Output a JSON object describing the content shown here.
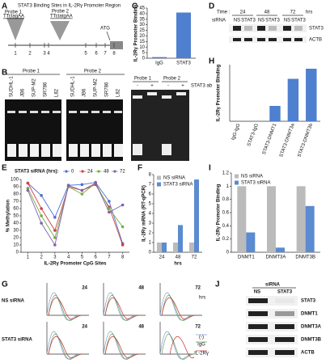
{
  "chart_data": [
    {
      "type": "bar",
      "categories": [
        "IgG",
        "STAT3"
      ],
      "values": [
        1,
        41
      ],
      "color": "#4f7fcf",
      "ylabel": "IL-2Rγ Promoter Binding",
      "ylim": [
        0,
        45
      ],
      "yticks": [
        0,
        5,
        10,
        15,
        20,
        25,
        30,
        35,
        40,
        45
      ]
    },
    {
      "type": "line",
      "legend_title": "STAT3 siRNA (hrs):",
      "x": [
        1,
        2,
        3,
        4,
        5,
        6,
        7,
        8
      ],
      "series": [
        {
          "name": "0",
          "color": "#4a6fd6",
          "values": [
            95,
            78,
            48,
            92,
            93,
            96,
            70,
            12
          ]
        },
        {
          "name": "24",
          "color": "#d04040",
          "values": [
            95,
            60,
            30,
            90,
            85,
            93,
            62,
            10
          ]
        },
        {
          "name": "48",
          "color": "#7aaa40",
          "values": [
            88,
            50,
            20,
            90,
            80,
            95,
            60,
            35
          ]
        },
        {
          "name": "72",
          "color": "#8060b0",
          "values": [
            85,
            40,
            10,
            92,
            85,
            95,
            55,
            65
          ]
        }
      ],
      "xlabel": "IL-2Rγ Promoter CpG Sites",
      "ylabel": "% Methylation",
      "xlim": [
        0.5,
        8.5
      ],
      "xticks": [
        1,
        2,
        3,
        4,
        5,
        6,
        7,
        8
      ],
      "ylim": [
        0,
        100
      ],
      "yticks": [
        0,
        10,
        20,
        30,
        40,
        50,
        60,
        70,
        80,
        90,
        100
      ]
    },
    {
      "type": "bar",
      "categories": [
        "24",
        "48",
        "72"
      ],
      "xlabel": "hrs",
      "series": [
        {
          "name": "NS siRNA",
          "color": "#bbbbbb",
          "values": [
            1,
            1,
            1
          ]
        },
        {
          "name": "STAT3 siRNA",
          "color": "#5b8bd0",
          "values": [
            1,
            2.8,
            7.5
          ]
        }
      ],
      "ylabel": "IL-2Rγ mRNA (RT-qPCR)",
      "ylim": [
        0,
        8
      ],
      "yticks": [
        0,
        1,
        2,
        3,
        4,
        5,
        6,
        7,
        8
      ]
    },
    {
      "type": "bar",
      "categories": [
        "IgG-IgG",
        "STAT3-IgG",
        "STAT3-DNMT1",
        "STAT3-DNMT3a",
        "STAT3-DNMT3b"
      ],
      "values": [
        0,
        0,
        0.38,
        1.05,
        1.3
      ],
      "color": "#4f7fcf",
      "ylabel": "IL-2Rγ Promoter Binding",
      "ylim": [
        0,
        1.4
      ]
    },
    {
      "type": "bar",
      "categories": [
        "DNMT1",
        "DNMT3A",
        "DNMT3B"
      ],
      "series": [
        {
          "name": "NS siRNA",
          "color": "#bbbbbb",
          "values": [
            1,
            1,
            1
          ]
        },
        {
          "name": "STAT3 siRNA",
          "color": "#5b8bd0",
          "values": [
            0.3,
            0.07,
            0.7
          ]
        }
      ],
      "ylabel": "IL-2Rγ Promoter Binding",
      "ylim": [
        0,
        1.2
      ],
      "yticks": [
        0,
        0.2,
        0.4,
        0.6,
        0.8,
        1,
        1.2
      ]
    }
  ],
  "figure": {
    "letters": [
      "A",
      "B",
      "C",
      "D",
      "E",
      "F",
      "G",
      "H",
      "I",
      "J"
    ],
    "a": {
      "title": "STAT3 Binding Sites in IL-2Rγ Promoter Region",
      "probe1": "Probe 1",
      "seq1": "TTctagAA",
      "probe2": "Probe 2",
      "seq2": "TTctatgAA",
      "atg": "ATG",
      "sites": [
        "1",
        "2",
        "3",
        "4",
        "5",
        "6",
        "7",
        "8"
      ]
    },
    "b": {
      "probe1": "Probe 1",
      "probe2": "Probe 2",
      "lanes": [
        "SUDHL-1",
        "JB6",
        "SUP-M2",
        "SR786",
        "L82"
      ],
      "ab": "STAT3 ab",
      "signs": [
        "-",
        "+",
        "-",
        "+"
      ]
    },
    "d": {
      "time": "Time :",
      "hours": [
        "24",
        "48",
        "72"
      ],
      "hrs": "hrs",
      "sirna": "siRNA",
      "groups": [
        "NS",
        "STAT3"
      ],
      "blots": [
        "STAT3",
        "ACTB"
      ]
    },
    "g": {
      "rows": [
        "NS siRNA",
        "STAT3 siRNA"
      ],
      "hours": [
        "24",
        "48",
        "72"
      ],
      "hrs": "hrs",
      "legend": [
        "(-)",
        "IgG",
        "IL-2Rγ"
      ]
    },
    "j": {
      "sirna": "siRNA",
      "groups": [
        "NS",
        "STAT3"
      ],
      "blots": [
        "STAT3",
        "DNMT1",
        "DNMT3A",
        "DNMT3B",
        "ACTB"
      ]
    }
  }
}
